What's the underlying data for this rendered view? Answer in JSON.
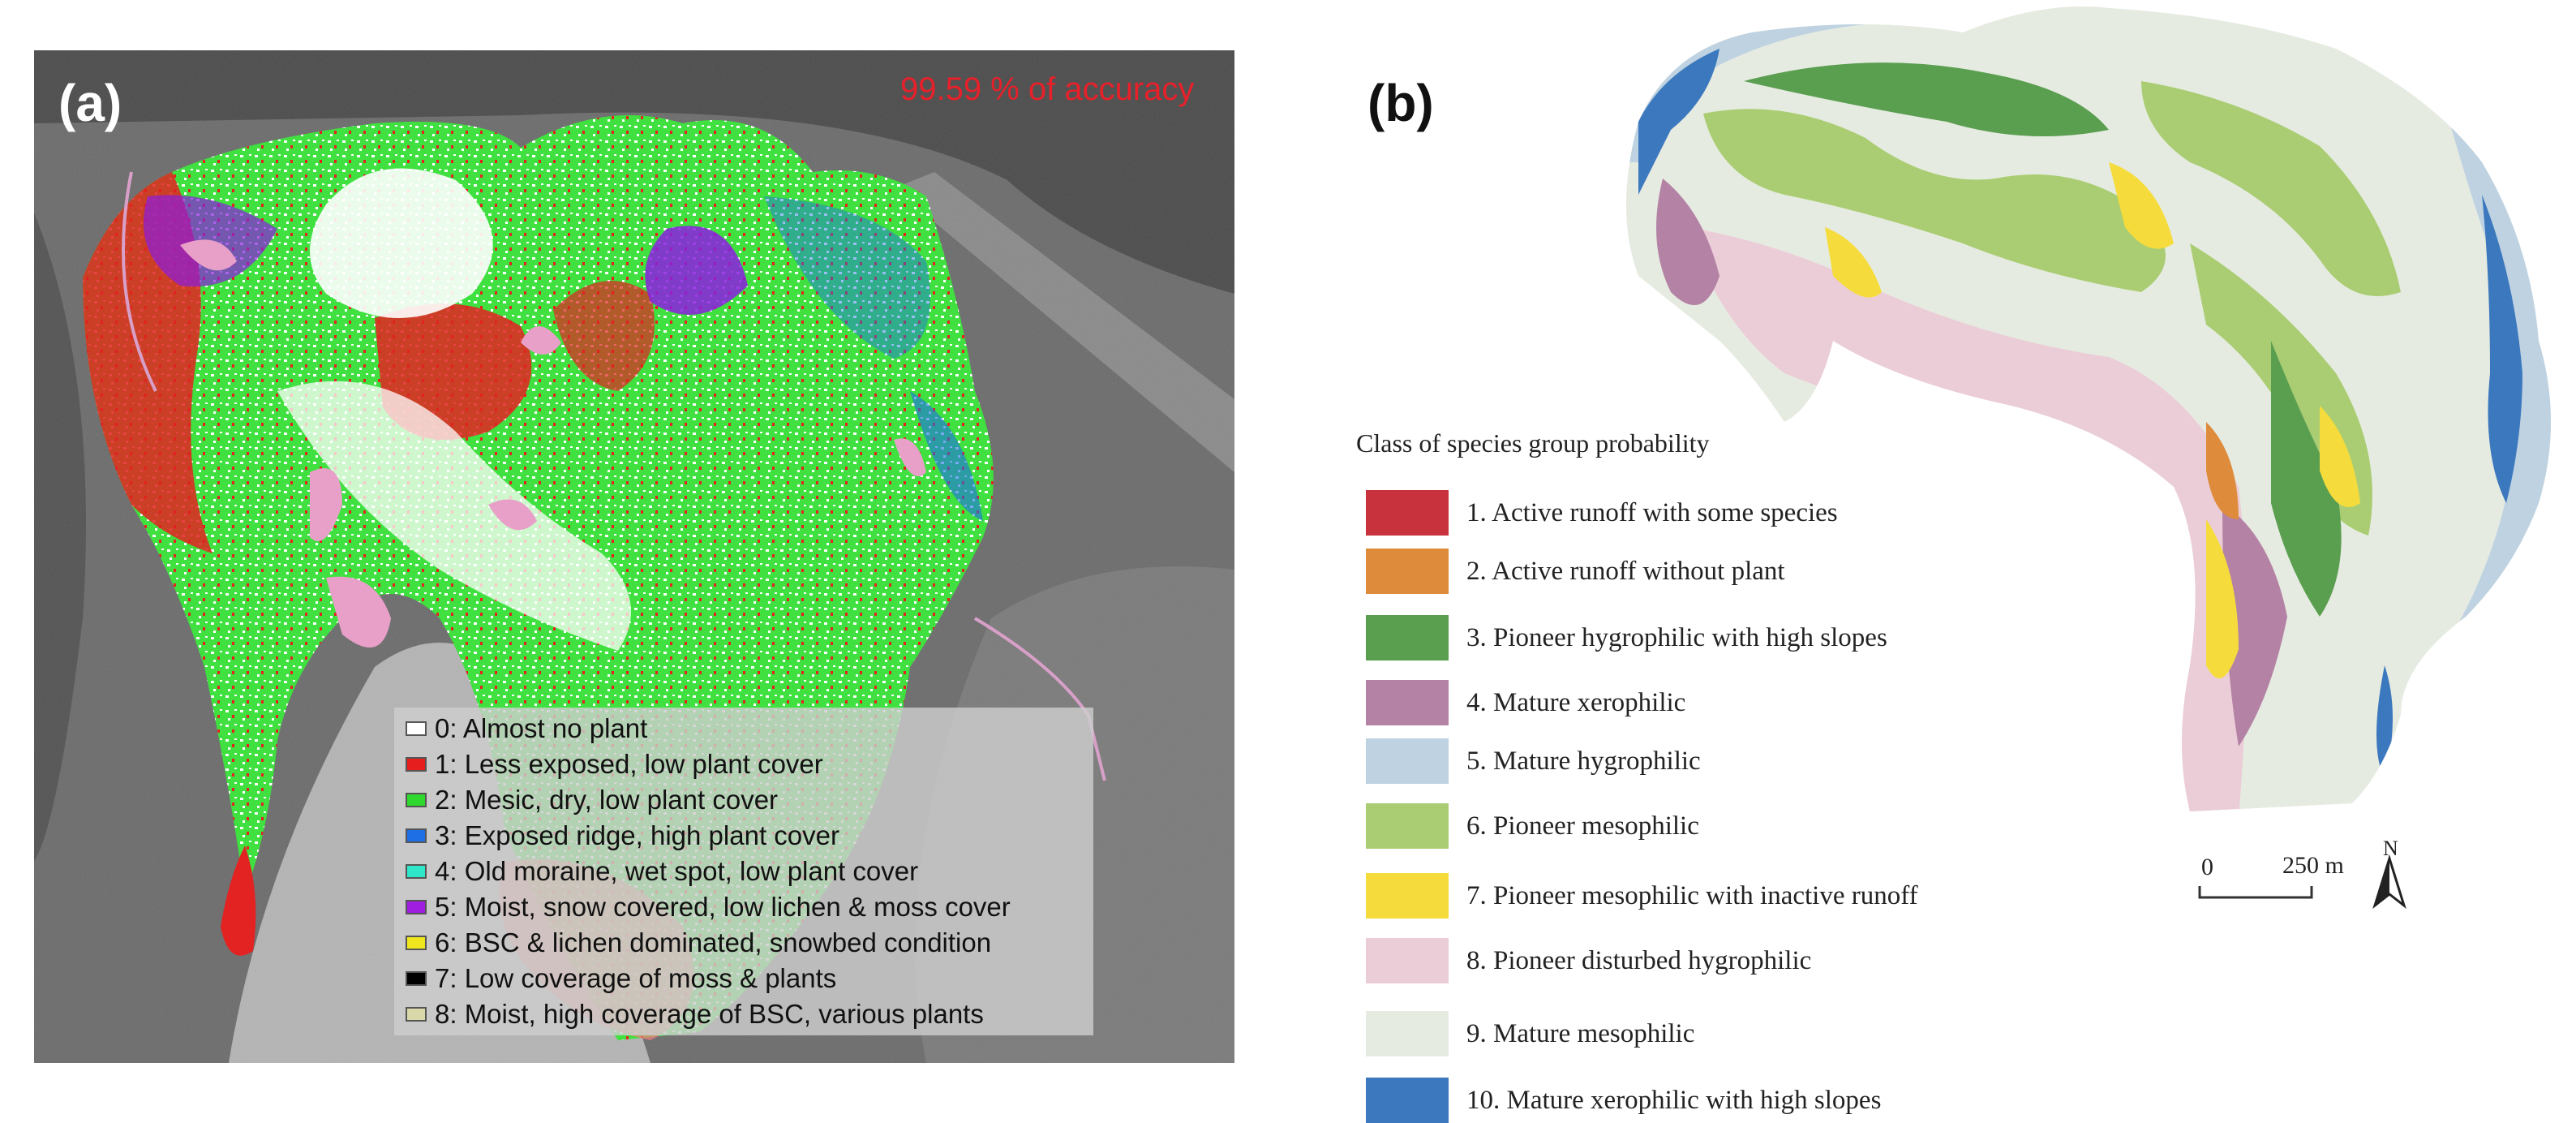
{
  "panel_a": {
    "label": "(a)",
    "accuracy_text": "99.59 % of accuracy",
    "legend": [
      {
        "label": "0: Almost no plant",
        "color": "#ffffff"
      },
      {
        "label": "1: Less exposed, low plant cover",
        "color": "#e61e1e"
      },
      {
        "label": "2: Mesic, dry, low plant cover",
        "color": "#2ed82e"
      },
      {
        "label": "3: Exposed ridge, high plant cover",
        "color": "#1e6ee6"
      },
      {
        "label": "4: Old moraine, wet spot, low plant cover",
        "color": "#2ee6c8"
      },
      {
        "label": "5: Moist, snow covered, low lichen & moss cover",
        "color": "#a01ee0"
      },
      {
        "label": "6: BSC & lichen dominated, snowbed condition",
        "color": "#f0e61e"
      },
      {
        "label": "7: Low coverage of moss & plants",
        "color": "#000000"
      },
      {
        "label": "8: Moist, high coverage of BSC, various plants",
        "color": "#d8d8a8"
      }
    ]
  },
  "panel_b": {
    "label": "(b)",
    "legend_title": "Class of species group probability",
    "legend": [
      {
        "label": "1. Active runoff with some species",
        "color": "#c8323c"
      },
      {
        "label": "2. Active runoff without plant",
        "color": "#de8c3c"
      },
      {
        "label": "3. Pioneer hygrophilic with high slopes",
        "color": "#5a9e50"
      },
      {
        "label": "4. Mature xerophilic",
        "color": "#b482a5"
      },
      {
        "label": "5. Mature hygrophilic",
        "color": "#bed2e1"
      },
      {
        "label": "6. Pioneer mesophilic",
        "color": "#aacd73"
      },
      {
        "label": "7. Pioneer mesophilic with inactive runoff",
        "color": "#f5dc3c"
      },
      {
        "label": "8.  Pioneer disturbed hygrophilic",
        "color": "#ebcdd7"
      },
      {
        "label": "9. Mature mesophilic",
        "color": "#e6ebe1"
      },
      {
        "label": "10. Mature xerophilic with high slopes",
        "color": "#3c78be"
      }
    ],
    "scale": {
      "zero": "0",
      "distance": "250 m",
      "north": "N"
    }
  }
}
